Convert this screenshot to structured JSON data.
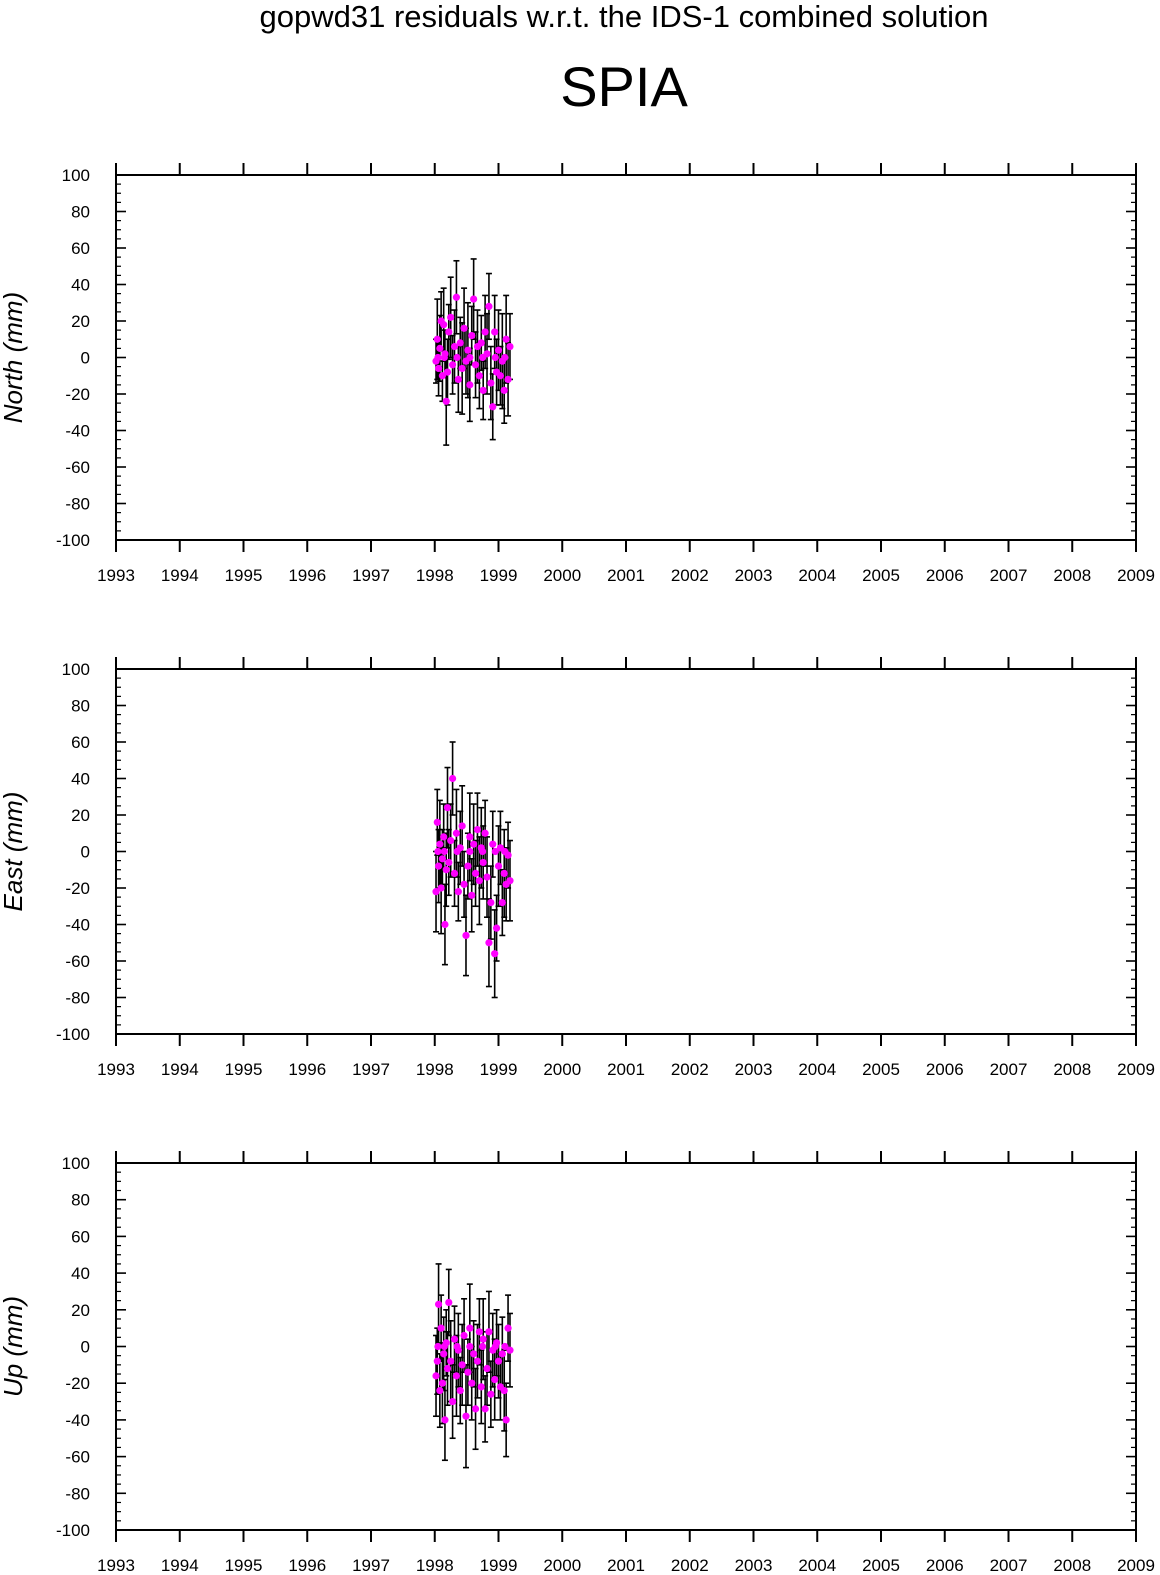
{
  "header": {
    "title": "gopwd31 residuals w.r.t. the IDS-1 combined solution",
    "station": "SPIA"
  },
  "colors": {
    "point": "#ff00ff",
    "errorbar": "#000000",
    "axis": "#000000"
  },
  "chart_data": [
    {
      "type": "scatter",
      "ylabel": "North (mm)",
      "xlim": [
        1993,
        2009
      ],
      "ylim": [
        -100,
        100
      ],
      "xticks": [
        "1993",
        "1994",
        "1995",
        "1996",
        "1997",
        "1998",
        "1999",
        "2000",
        "2001",
        "2002",
        "2003",
        "2004",
        "2005",
        "2006",
        "2007",
        "2008",
        "2009"
      ],
      "yticks": [
        "-100",
        "-80",
        "-60",
        "-40",
        "-20",
        "0",
        "20",
        "40",
        "60",
        "80",
        "100"
      ],
      "points": [
        {
          "x": 1998.02,
          "y": -2,
          "err": 12
        },
        {
          "x": 1998.04,
          "y": 10,
          "err": 22
        },
        {
          "x": 1998.06,
          "y": -6,
          "err": 15
        },
        {
          "x": 1998.08,
          "y": 5,
          "err": 18
        },
        {
          "x": 1998.1,
          "y": 20,
          "err": 16
        },
        {
          "x": 1998.12,
          "y": -10,
          "err": 14
        },
        {
          "x": 1998.14,
          "y": 18,
          "err": 20
        },
        {
          "x": 1998.16,
          "y": 2,
          "err": 13
        },
        {
          "x": 1998.18,
          "y": -24,
          "err": 24
        },
        {
          "x": 1998.2,
          "y": -8,
          "err": 18
        },
        {
          "x": 1998.22,
          "y": 14,
          "err": 15
        },
        {
          "x": 1998.25,
          "y": 22,
          "err": 22
        },
        {
          "x": 1998.28,
          "y": -4,
          "err": 16
        },
        {
          "x": 1998.31,
          "y": 6,
          "err": 20
        },
        {
          "x": 1998.34,
          "y": 33,
          "err": 20
        },
        {
          "x": 1998.37,
          "y": -12,
          "err": 18
        },
        {
          "x": 1998.4,
          "y": 8,
          "err": 14
        },
        {
          "x": 1998.43,
          "y": -6,
          "err": 25
        },
        {
          "x": 1998.46,
          "y": 16,
          "err": 22
        },
        {
          "x": 1998.49,
          "y": -2,
          "err": 18
        },
        {
          "x": 1998.52,
          "y": 4,
          "err": 26
        },
        {
          "x": 1998.55,
          "y": -15,
          "err": 20
        },
        {
          "x": 1998.58,
          "y": 12,
          "err": 16
        },
        {
          "x": 1998.61,
          "y": 32,
          "err": 22
        },
        {
          "x": 1998.64,
          "y": -4,
          "err": 18
        },
        {
          "x": 1998.67,
          "y": 6,
          "err": 20
        },
        {
          "x": 1998.7,
          "y": -10,
          "err": 18
        },
        {
          "x": 1998.73,
          "y": 8,
          "err": 15
        },
        {
          "x": 1998.76,
          "y": -18,
          "err": 16
        },
        {
          "x": 1998.79,
          "y": 14,
          "err": 20
        },
        {
          "x": 1998.82,
          "y": 2,
          "err": 22
        },
        {
          "x": 1998.85,
          "y": 28,
          "err": 18
        },
        {
          "x": 1998.88,
          "y": -14,
          "err": 20
        },
        {
          "x": 1998.91,
          "y": -27,
          "err": 18
        },
        {
          "x": 1998.94,
          "y": 14,
          "err": 20
        },
        {
          "x": 1998.97,
          "y": -8,
          "err": 18
        },
        {
          "x": 1999.0,
          "y": 4,
          "err": 22
        },
        {
          "x": 1999.03,
          "y": -10,
          "err": 16
        },
        {
          "x": 1999.06,
          "y": -2,
          "err": 26
        },
        {
          "x": 1999.09,
          "y": -18,
          "err": 18
        },
        {
          "x": 1999.12,
          "y": 10,
          "err": 24
        },
        {
          "x": 1999.15,
          "y": -12,
          "err": 20
        },
        {
          "x": 1999.18,
          "y": 6,
          "err": 18
        },
        {
          "x": 1998.05,
          "y": 0,
          "err": 0
        },
        {
          "x": 1998.15,
          "y": 0,
          "err": 0
        },
        {
          "x": 1998.35,
          "y": 0,
          "err": 0
        },
        {
          "x": 1998.55,
          "y": 0,
          "err": 0
        },
        {
          "x": 1998.75,
          "y": 0,
          "err": 0
        },
        {
          "x": 1998.95,
          "y": 0,
          "err": 0
        },
        {
          "x": 1999.1,
          "y": 0,
          "err": 0
        }
      ]
    },
    {
      "type": "scatter",
      "ylabel": "East (mm)",
      "xlim": [
        1993,
        2009
      ],
      "ylim": [
        -100,
        100
      ],
      "xticks": [
        "1993",
        "1994",
        "1995",
        "1996",
        "1997",
        "1998",
        "1999",
        "2000",
        "2001",
        "2002",
        "2003",
        "2004",
        "2005",
        "2006",
        "2007",
        "2008",
        "2009"
      ],
      "yticks": [
        "-100",
        "-80",
        "-60",
        "-40",
        "-20",
        "0",
        "20",
        "40",
        "60",
        "80",
        "100"
      ],
      "points": [
        {
          "x": 1998.02,
          "y": -22,
          "err": 22
        },
        {
          "x": 1998.04,
          "y": 16,
          "err": 18
        },
        {
          "x": 1998.06,
          "y": -8,
          "err": 20
        },
        {
          "x": 1998.08,
          "y": 4,
          "err": 24
        },
        {
          "x": 1998.1,
          "y": -20,
          "err": 25
        },
        {
          "x": 1998.12,
          "y": -4,
          "err": 16
        },
        {
          "x": 1998.14,
          "y": 8,
          "err": 18
        },
        {
          "x": 1998.16,
          "y": -40,
          "err": 22
        },
        {
          "x": 1998.18,
          "y": -10,
          "err": 20
        },
        {
          "x": 1998.2,
          "y": 24,
          "err": 22
        },
        {
          "x": 1998.22,
          "y": -6,
          "err": 18
        },
        {
          "x": 1998.25,
          "y": 6,
          "err": 20
        },
        {
          "x": 1998.28,
          "y": 40,
          "err": 20
        },
        {
          "x": 1998.31,
          "y": -12,
          "err": 18
        },
        {
          "x": 1998.34,
          "y": 10,
          "err": 24
        },
        {
          "x": 1998.37,
          "y": -22,
          "err": 16
        },
        {
          "x": 1998.4,
          "y": 2,
          "err": 20
        },
        {
          "x": 1998.43,
          "y": 14,
          "err": 22
        },
        {
          "x": 1998.46,
          "y": -18,
          "err": 18
        },
        {
          "x": 1998.49,
          "y": -46,
          "err": 22
        },
        {
          "x": 1998.52,
          "y": -8,
          "err": 18
        },
        {
          "x": 1998.55,
          "y": 8,
          "err": 24
        },
        {
          "x": 1998.58,
          "y": -24,
          "err": 20
        },
        {
          "x": 1998.61,
          "y": 4,
          "err": 22
        },
        {
          "x": 1998.64,
          "y": -12,
          "err": 18
        },
        {
          "x": 1998.67,
          "y": 12,
          "err": 20
        },
        {
          "x": 1998.7,
          "y": -16,
          "err": 24
        },
        {
          "x": 1998.73,
          "y": 2,
          "err": 22
        },
        {
          "x": 1998.76,
          "y": -6,
          "err": 20
        },
        {
          "x": 1998.79,
          "y": 10,
          "err": 18
        },
        {
          "x": 1998.82,
          "y": -14,
          "err": 22
        },
        {
          "x": 1998.85,
          "y": -50,
          "err": 24
        },
        {
          "x": 1998.88,
          "y": -28,
          "err": 20
        },
        {
          "x": 1998.91,
          "y": 4,
          "err": 18
        },
        {
          "x": 1998.94,
          "y": -56,
          "err": 24
        },
        {
          "x": 1998.97,
          "y": -42,
          "err": 18
        },
        {
          "x": 1999.0,
          "y": -8,
          "err": 22
        },
        {
          "x": 1999.03,
          "y": 2,
          "err": 20
        },
        {
          "x": 1999.06,
          "y": -28,
          "err": 18
        },
        {
          "x": 1999.09,
          "y": -12,
          "err": 24
        },
        {
          "x": 1999.12,
          "y": -18,
          "err": 20
        },
        {
          "x": 1999.15,
          "y": -2,
          "err": 18
        },
        {
          "x": 1999.18,
          "y": -16,
          "err": 22
        },
        {
          "x": 1998.05,
          "y": 0,
          "err": 0
        },
        {
          "x": 1998.15,
          "y": 0,
          "err": 0
        },
        {
          "x": 1998.35,
          "y": 0,
          "err": 0
        },
        {
          "x": 1998.55,
          "y": 0,
          "err": 0
        },
        {
          "x": 1998.75,
          "y": 0,
          "err": 0
        },
        {
          "x": 1998.95,
          "y": 0,
          "err": 0
        },
        {
          "x": 1999.1,
          "y": 0,
          "err": 0
        }
      ]
    },
    {
      "type": "scatter",
      "ylabel": "Up (mm)",
      "xlim": [
        1993,
        2009
      ],
      "ylim": [
        -100,
        100
      ],
      "xticks": [
        "1993",
        "1994",
        "1995",
        "1996",
        "1997",
        "1998",
        "1999",
        "2000",
        "2001",
        "2002",
        "2003",
        "2004",
        "2005",
        "2006",
        "2007",
        "2008",
        "2009"
      ],
      "yticks": [
        "-100",
        "-80",
        "-60",
        "-40",
        "-20",
        "0",
        "20",
        "40",
        "60",
        "80",
        "100"
      ],
      "points": [
        {
          "x": 1998.02,
          "y": -16,
          "err": 22
        },
        {
          "x": 1998.04,
          "y": -8,
          "err": 18
        },
        {
          "x": 1998.06,
          "y": 23,
          "err": 22
        },
        {
          "x": 1998.08,
          "y": -24,
          "err": 20
        },
        {
          "x": 1998.1,
          "y": 10,
          "err": 18
        },
        {
          "x": 1998.12,
          "y": -20,
          "err": 22
        },
        {
          "x": 1998.14,
          "y": -4,
          "err": 20
        },
        {
          "x": 1998.16,
          "y": -40,
          "err": 22
        },
        {
          "x": 1998.18,
          "y": 2,
          "err": 18
        },
        {
          "x": 1998.2,
          "y": -12,
          "err": 20
        },
        {
          "x": 1998.22,
          "y": 24,
          "err": 18
        },
        {
          "x": 1998.25,
          "y": -8,
          "err": 22
        },
        {
          "x": 1998.28,
          "y": -30,
          "err": 20
        },
        {
          "x": 1998.31,
          "y": 4,
          "err": 18
        },
        {
          "x": 1998.34,
          "y": -16,
          "err": 22
        },
        {
          "x": 1998.37,
          "y": -2,
          "err": 20
        },
        {
          "x": 1998.4,
          "y": -24,
          "err": 18
        },
        {
          "x": 1998.43,
          "y": -10,
          "err": 22
        },
        {
          "x": 1998.46,
          "y": 6,
          "err": 20
        },
        {
          "x": 1998.49,
          "y": -38,
          "err": 28
        },
        {
          "x": 1998.52,
          "y": -14,
          "err": 18
        },
        {
          "x": 1998.55,
          "y": 10,
          "err": 24
        },
        {
          "x": 1998.58,
          "y": -20,
          "err": 20
        },
        {
          "x": 1998.61,
          "y": -4,
          "err": 18
        },
        {
          "x": 1998.64,
          "y": -34,
          "err": 22
        },
        {
          "x": 1998.67,
          "y": -8,
          "err": 20
        },
        {
          "x": 1998.7,
          "y": 8,
          "err": 18
        },
        {
          "x": 1998.73,
          "y": -22,
          "err": 20
        },
        {
          "x": 1998.76,
          "y": 4,
          "err": 22
        },
        {
          "x": 1998.79,
          "y": -34,
          "err": 18
        },
        {
          "x": 1998.82,
          "y": -12,
          "err": 20
        },
        {
          "x": 1998.85,
          "y": 8,
          "err": 22
        },
        {
          "x": 1998.88,
          "y": -26,
          "err": 18
        },
        {
          "x": 1998.91,
          "y": -2,
          "err": 20
        },
        {
          "x": 1998.94,
          "y": -18,
          "err": 22
        },
        {
          "x": 1998.97,
          "y": 2,
          "err": 18
        },
        {
          "x": 1999.0,
          "y": -8,
          "err": 20
        },
        {
          "x": 1999.03,
          "y": -22,
          "err": 18
        },
        {
          "x": 1999.06,
          "y": -4,
          "err": 20
        },
        {
          "x": 1999.09,
          "y": -24,
          "err": 22
        },
        {
          "x": 1999.12,
          "y": -40,
          "err": 20
        },
        {
          "x": 1999.15,
          "y": 10,
          "err": 18
        },
        {
          "x": 1999.18,
          "y": -2,
          "err": 20
        },
        {
          "x": 1998.05,
          "y": 0,
          "err": 0
        },
        {
          "x": 1998.15,
          "y": 0,
          "err": 0
        },
        {
          "x": 1998.35,
          "y": 0,
          "err": 0
        },
        {
          "x": 1998.55,
          "y": 0,
          "err": 0
        },
        {
          "x": 1998.75,
          "y": 0,
          "err": 0
        },
        {
          "x": 1998.95,
          "y": 0,
          "err": 0
        },
        {
          "x": 1999.1,
          "y": 0,
          "err": 0
        }
      ]
    }
  ]
}
